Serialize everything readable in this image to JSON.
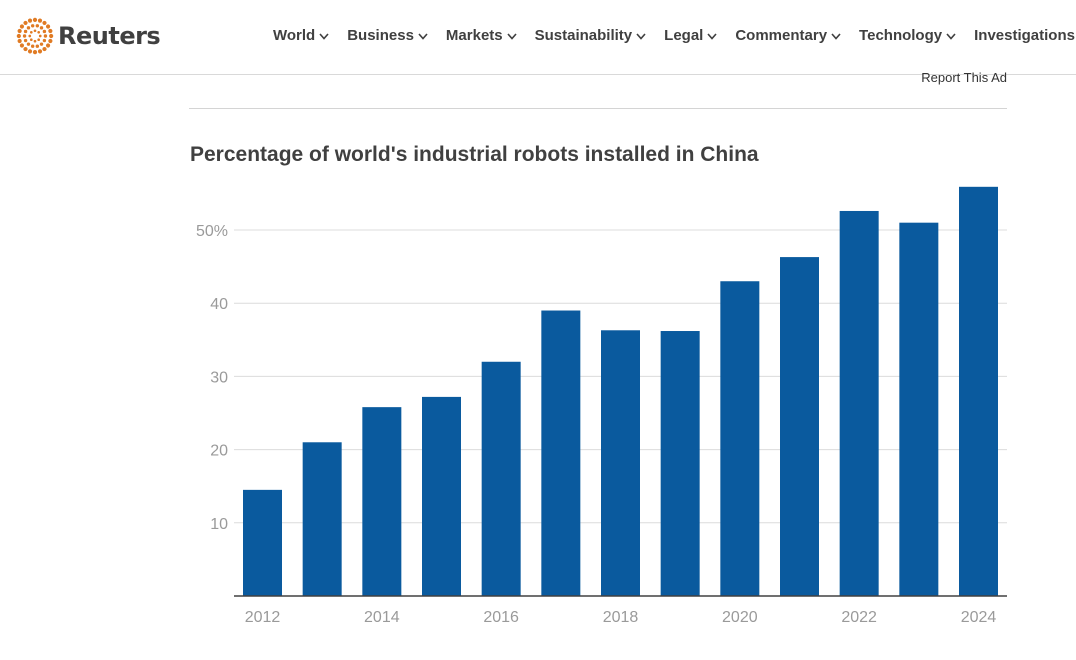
{
  "header": {
    "logo_text": "Reuters",
    "logo_color": "#e07b24",
    "nav": [
      {
        "label": "World"
      },
      {
        "label": "Business"
      },
      {
        "label": "Markets"
      },
      {
        "label": "Sustainability"
      },
      {
        "label": "Legal"
      },
      {
        "label": "Commentary"
      },
      {
        "label": "Technology"
      },
      {
        "label": "Investigations"
      }
    ]
  },
  "report_ad": "Report This Ad",
  "chart_data": {
    "type": "bar",
    "title": "Percentage of world's industrial robots installed in China",
    "categories": [
      "2012",
      "2013",
      "2014",
      "2015",
      "2016",
      "2017",
      "2018",
      "2019",
      "2020",
      "2021",
      "2022",
      "2023",
      "2024"
    ],
    "values": [
      14.5,
      21,
      25.8,
      27.2,
      32,
      39,
      36.3,
      36.2,
      43,
      46.3,
      52.6,
      51,
      55.9
    ],
    "x_tick_labels": [
      "2012",
      "",
      "2014",
      "",
      "2016",
      "",
      "2018",
      "",
      "2020",
      "",
      "2022",
      "",
      "2024"
    ],
    "y_ticks": [
      10,
      20,
      30,
      40,
      50
    ],
    "y_tick_labels": [
      "10",
      "20",
      "30",
      "40",
      "50%"
    ],
    "ylim": [
      0,
      57
    ],
    "bar_color": "#0a5a9e",
    "grid": true
  }
}
